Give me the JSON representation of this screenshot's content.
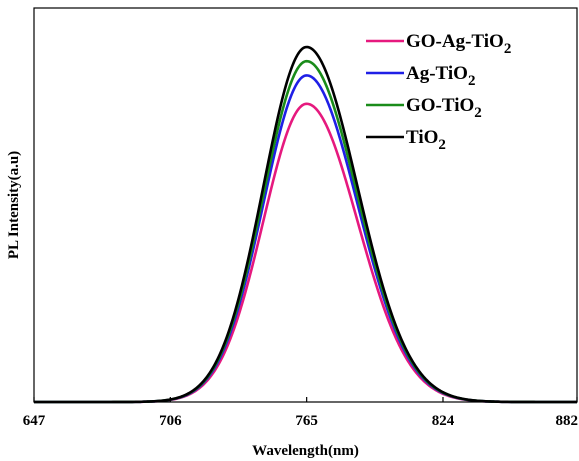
{
  "chart_data": {
    "type": "line",
    "title": "",
    "xlabel": "Wavelength(nm)",
    "ylabel": "PL Intensity(a.u)",
    "xlim": [
      647,
      882
    ],
    "ylim": [
      0,
      1.0
    ],
    "xticks": [
      647,
      706,
      765,
      824,
      882
    ],
    "yticks_shown": false,
    "grid": false,
    "legend_position": "top-right",
    "peak_x": 765,
    "series": [
      {
        "name": "GO-Ag-TiO2",
        "legend_main": "GO-Ag-TiO",
        "legend_sub": "2",
        "color": "#e6197e",
        "peak": 0.84,
        "fwhm": 48
      },
      {
        "name": "Ag-TiO2",
        "legend_main": "Ag-TiO",
        "legend_sub": "2",
        "color": "#1f1fe6",
        "peak": 0.92,
        "fwhm": 48
      },
      {
        "name": "GO-TiO2",
        "legend_main": "GO-TiO",
        "legend_sub": "2",
        "color": "#1a8c1a",
        "peak": 0.96,
        "fwhm": 48
      },
      {
        "name": "TiO2",
        "legend_main": "TiO",
        "legend_sub": "2",
        "color": "#000000",
        "peak": 1.0,
        "fwhm": 48
      }
    ]
  }
}
